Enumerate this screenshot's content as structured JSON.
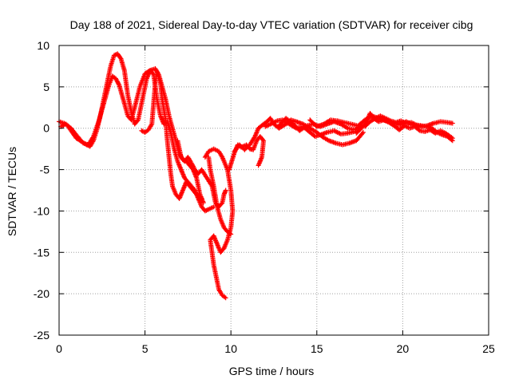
{
  "chart_data": {
    "type": "scatter",
    "title": "Day 188 of 2021, Sidereal Day-to-day VTEC variation (SDTVAR) for receiver cibg",
    "xlabel": "GPS time / hours",
    "ylabel": "SDTVAR / TECUs",
    "xlim": [
      0,
      25
    ],
    "ylim": [
      -25,
      10
    ],
    "xticks": [
      "0",
      "5",
      "10",
      "15",
      "20",
      "25"
    ],
    "yticks": [
      "10",
      "5",
      "0",
      "-5",
      "-10",
      "-15",
      "-20",
      "-25"
    ],
    "grid": true,
    "marker": "+",
    "series": [
      {
        "name": "SDTVAR",
        "color": "#ff0000",
        "tracks": [
          [
            [
              0.0,
              0.8
            ],
            [
              0.3,
              0.6
            ],
            [
              0.5,
              0.3
            ],
            [
              0.8,
              -0.6
            ],
            [
              1.0,
              -1.2
            ],
            [
              1.3,
              -1.6
            ],
            [
              1.6,
              -2.0
            ],
            [
              1.8,
              -2.2
            ],
            [
              2.0,
              -1.5
            ],
            [
              2.2,
              -0.2
            ],
            [
              2.4,
              1.5
            ],
            [
              2.6,
              3.5
            ],
            [
              2.8,
              5.5
            ],
            [
              3.0,
              7.5
            ],
            [
              3.2,
              8.8
            ],
            [
              3.4,
              9.0
            ],
            [
              3.6,
              8.4
            ],
            [
              3.8,
              7.0
            ],
            [
              3.9,
              5.5
            ],
            [
              4.0,
              4.0
            ],
            [
              4.2,
              2.0
            ],
            [
              4.4,
              0.5
            ],
            [
              4.6,
              1.0
            ],
            [
              4.9,
              4.0
            ],
            [
              5.1,
              6.0
            ],
            [
              5.3,
              7.0
            ],
            [
              5.6,
              7.2
            ],
            [
              5.8,
              6.5
            ],
            [
              6.0,
              5.0
            ],
            [
              6.2,
              3.5
            ],
            [
              6.4,
              1.5
            ],
            [
              6.6,
              0.0
            ],
            [
              6.8,
              -1.5
            ],
            [
              7.0,
              -3.0
            ],
            [
              7.2,
              -3.8
            ],
            [
              7.4,
              -4.0
            ],
            [
              7.6,
              -4.5
            ],
            [
              7.8,
              -5.0
            ],
            [
              8.0,
              -6.0
            ],
            [
              8.2,
              -8.0
            ],
            [
              8.4,
              -9.0
            ]
          ],
          [
            [
              0.1,
              0.2
            ],
            [
              0.4,
              0.5
            ],
            [
              0.7,
              0.0
            ],
            [
              1.0,
              -0.8
            ],
            [
              1.4,
              -1.8
            ],
            [
              1.7,
              -2.0
            ],
            [
              2.0,
              -1.0
            ],
            [
              2.3,
              0.8
            ],
            [
              2.6,
              3.0
            ],
            [
              2.9,
              5.2
            ],
            [
              3.1,
              6.3
            ],
            [
              3.3,
              6.0
            ],
            [
              3.5,
              5.2
            ],
            [
              3.8,
              3.0
            ],
            [
              4.0,
              1.5
            ],
            [
              4.2,
              1.0
            ],
            [
              4.4,
              2.5
            ],
            [
              4.7,
              5.0
            ],
            [
              5.0,
              6.6
            ],
            [
              5.3,
              7.0
            ],
            [
              5.5,
              6.5
            ],
            [
              5.7,
              3.5
            ],
            [
              5.9,
              1.5
            ],
            [
              6.1,
              0.5
            ],
            [
              6.3,
              0.8
            ],
            [
              6.5,
              -0.5
            ],
            [
              6.7,
              -2.5
            ],
            [
              6.9,
              -4.0
            ],
            [
              7.1,
              -5.0
            ],
            [
              7.3,
              -6.0
            ],
            [
              7.5,
              -6.5
            ],
            [
              7.7,
              -7.0
            ],
            [
              7.9,
              -7.5
            ],
            [
              8.1,
              -8.5
            ],
            [
              8.3,
              -9.5
            ],
            [
              8.5,
              -10.0
            ],
            [
              8.7,
              -9.8
            ],
            [
              9.0,
              -9.5
            ]
          ],
          [
            [
              4.8,
              -0.3
            ],
            [
              5.0,
              -0.5
            ],
            [
              5.2,
              -0.2
            ],
            [
              5.4,
              0.5
            ],
            [
              5.5,
              3.0
            ],
            [
              5.6,
              5.5
            ],
            [
              5.7,
              6.8
            ],
            [
              5.9,
              5.5
            ],
            [
              6.0,
              3.5
            ],
            [
              6.2,
              1.0
            ],
            [
              6.3,
              -1.5
            ],
            [
              6.4,
              -3.5
            ],
            [
              6.5,
              -5.5
            ],
            [
              6.6,
              -7.0
            ],
            [
              6.8,
              -8.0
            ],
            [
              7.0,
              -8.5
            ],
            [
              7.2,
              -7.5
            ],
            [
              7.4,
              -6.5
            ],
            [
              7.6,
              -7.0
            ],
            [
              7.8,
              -7.5
            ],
            [
              8.0,
              -8.0
            ],
            [
              8.3,
              -8.5
            ]
          ],
          [
            [
              6.9,
              -1.5
            ],
            [
              7.1,
              -3.5
            ],
            [
              7.3,
              -4.0
            ],
            [
              7.5,
              -3.5
            ],
            [
              7.7,
              -4.2
            ],
            [
              7.9,
              -5.0
            ],
            [
              8.1,
              -5.5
            ],
            [
              8.3,
              -5.0
            ],
            [
              8.6,
              -6.0
            ],
            [
              8.9,
              -7.0
            ],
            [
              9.0,
              -8.0
            ],
            [
              9.1,
              -9.0
            ],
            [
              9.3,
              -9.5
            ],
            [
              9.5,
              -9.0
            ],
            [
              9.6,
              -8.0
            ],
            [
              9.7,
              -7.5
            ]
          ],
          [
            [
              8.7,
              -3.5
            ],
            [
              8.8,
              -5.0
            ],
            [
              9.0,
              -7.0
            ],
            [
              9.2,
              -9.5
            ],
            [
              9.4,
              -11.0
            ],
            [
              9.6,
              -12.0
            ],
            [
              9.8,
              -12.5
            ],
            [
              10.0,
              -12.8
            ]
          ],
          [
            [
              8.5,
              -3.5
            ],
            [
              8.7,
              -2.8
            ],
            [
              9.0,
              -2.5
            ],
            [
              9.3,
              -2.8
            ],
            [
              9.5,
              -3.5
            ],
            [
              9.8,
              -5.0
            ],
            [
              10.0,
              -7.5
            ],
            [
              10.1,
              -10.0
            ],
            [
              10.0,
              -12.0
            ],
            [
              9.8,
              -13.5
            ],
            [
              9.6,
              -14.5
            ],
            [
              9.4,
              -15.0
            ],
            [
              9.2,
              -14.0
            ],
            [
              9.0,
              -13.0
            ],
            [
              8.8,
              -13.5
            ],
            [
              8.9,
              -15.0
            ],
            [
              9.0,
              -16.5
            ],
            [
              9.1,
              -17.5
            ],
            [
              9.2,
              -18.5
            ],
            [
              9.3,
              -19.5
            ],
            [
              9.5,
              -20.2
            ],
            [
              9.7,
              -20.5
            ]
          ],
          [
            [
              9.9,
              -5.0
            ],
            [
              10.2,
              -3.0
            ],
            [
              10.4,
              -2.0
            ],
            [
              10.6,
              -2.3
            ],
            [
              10.9,
              -2.0
            ],
            [
              11.1,
              -2.5
            ],
            [
              11.3,
              -2.6
            ],
            [
              11.5,
              -1.5
            ],
            [
              11.7,
              -1.0
            ],
            [
              11.9,
              -1.5
            ],
            [
              11.8,
              -3.5
            ],
            [
              11.6,
              -4.5
            ]
          ],
          [
            [
              10.2,
              -2.8
            ],
            [
              10.5,
              -2.0
            ],
            [
              10.8,
              -2.6
            ],
            [
              11.1,
              -2.0
            ],
            [
              11.4,
              -1.0
            ],
            [
              11.6,
              0.0
            ],
            [
              11.9,
              0.5
            ],
            [
              12.1,
              0.8
            ],
            [
              12.3,
              1.2
            ],
            [
              12.5,
              0.5
            ],
            [
              12.8,
              0.0
            ],
            [
              13.2,
              0.5
            ],
            [
              13.5,
              1.0
            ],
            [
              13.8,
              0.8
            ],
            [
              14.2,
              0.5
            ],
            [
              14.6,
              0.0
            ],
            [
              15.0,
              -0.5
            ],
            [
              15.3,
              -1.0
            ],
            [
              15.7,
              -1.5
            ],
            [
              16.1,
              -1.8
            ],
            [
              16.5,
              -2.0
            ],
            [
              16.9,
              -1.8
            ],
            [
              17.3,
              -1.5
            ],
            [
              17.7,
              -0.5
            ]
          ],
          [
            [
              12.0,
              0.2
            ],
            [
              12.4,
              0.6
            ],
            [
              12.7,
              0.9
            ],
            [
              13.0,
              1.0
            ],
            [
              13.4,
              0.5
            ],
            [
              13.8,
              0.0
            ],
            [
              14.2,
              0.2
            ],
            [
              14.6,
              -0.5
            ],
            [
              14.9,
              -1.0
            ],
            [
              15.2,
              -0.8
            ],
            [
              15.6,
              -0.5
            ],
            [
              16.0,
              -0.3
            ],
            [
              16.4,
              -0.7
            ],
            [
              16.8,
              -0.6
            ],
            [
              17.2,
              -0.4
            ]
          ],
          [
            [
              12.8,
              0.3
            ],
            [
              13.2,
              1.2
            ],
            [
              13.6,
              0.6
            ],
            [
              14.0,
              -0.3
            ],
            [
              14.4,
              0.3
            ],
            [
              14.8,
              0.5
            ],
            [
              15.2,
              0.2
            ],
            [
              15.6,
              0.5
            ],
            [
              16.0,
              0.8
            ],
            [
              16.4,
              0.5
            ],
            [
              16.8,
              0.0
            ],
            [
              17.2,
              -0.2
            ],
            [
              17.6,
              0.3
            ]
          ],
          [
            [
              14.6,
              1.0
            ],
            [
              15.0,
              0.2
            ],
            [
              15.4,
              0.5
            ],
            [
              15.8,
              1.0
            ],
            [
              16.2,
              0.9
            ],
            [
              16.6,
              0.7
            ],
            [
              17.0,
              0.5
            ],
            [
              17.4,
              0.3
            ],
            [
              17.8,
              1.0
            ],
            [
              18.2,
              1.5
            ],
            [
              18.6,
              1.2
            ],
            [
              19.0,
              0.9
            ],
            [
              19.4,
              0.6
            ],
            [
              19.8,
              0.4
            ],
            [
              20.2,
              0.8
            ],
            [
              20.6,
              0.4
            ],
            [
              21.0,
              0.2
            ],
            [
              21.4,
              0.3
            ],
            [
              21.8,
              0.6
            ],
            [
              22.2,
              0.8
            ],
            [
              22.6,
              0.7
            ],
            [
              22.9,
              0.6
            ]
          ],
          [
            [
              17.3,
              -0.6
            ],
            [
              17.6,
              0.0
            ],
            [
              17.9,
              0.8
            ],
            [
              18.1,
              1.8
            ],
            [
              18.3,
              1.2
            ],
            [
              18.6,
              0.8
            ],
            [
              18.9,
              1.0
            ],
            [
              19.2,
              0.7
            ],
            [
              19.5,
              0.3
            ],
            [
              19.8,
              -0.2
            ],
            [
              20.1,
              0.3
            ],
            [
              20.4,
              0.0
            ],
            [
              20.7,
              0.2
            ],
            [
              21.0,
              -0.3
            ],
            [
              21.3,
              -0.4
            ],
            [
              21.6,
              -0.2
            ],
            [
              21.9,
              -0.6
            ],
            [
              22.2,
              -0.3
            ],
            [
              22.5,
              -0.6
            ],
            [
              22.9,
              -1.2
            ]
          ],
          [
            [
              17.8,
              0.2
            ],
            [
              18.1,
              0.8
            ],
            [
              18.4,
              1.2
            ],
            [
              18.7,
              1.5
            ],
            [
              19.0,
              1.2
            ],
            [
              19.3,
              0.9
            ],
            [
              19.6,
              0.7
            ],
            [
              19.9,
              0.9
            ],
            [
              20.2,
              0.6
            ],
            [
              20.5,
              0.7
            ],
            [
              20.8,
              0.4
            ],
            [
              21.1,
              0.3
            ],
            [
              21.4,
              0.2
            ],
            [
              21.7,
              0.0
            ],
            [
              22.0,
              -0.5
            ],
            [
              22.3,
              -0.8
            ],
            [
              22.6,
              -1.0
            ],
            [
              22.9,
              -1.5
            ]
          ]
        ]
      }
    ]
  }
}
